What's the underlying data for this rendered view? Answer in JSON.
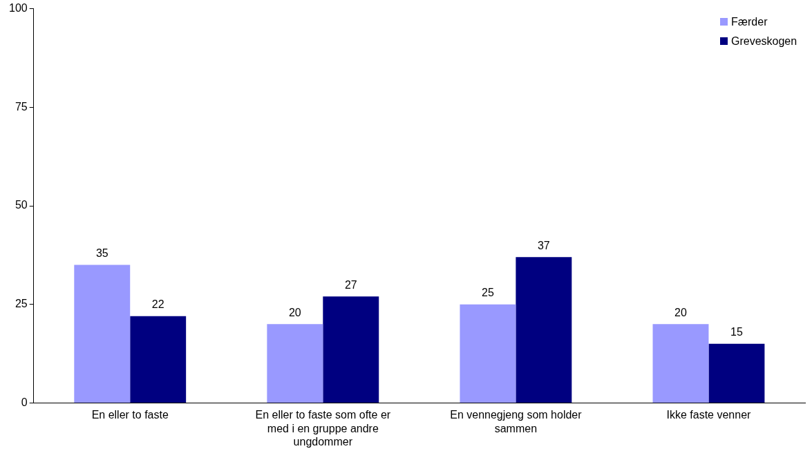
{
  "chart_data": {
    "type": "bar",
    "categories": [
      "En eller to faste",
      "En eller to faste som ofte er med i en gruppe andre ungdommer",
      "En vennegjeng som holder sammen",
      "Ikke faste venner"
    ],
    "series": [
      {
        "name": "Færder",
        "color": "#9999ff",
        "values": [
          35,
          20,
          25,
          20
        ]
      },
      {
        "name": "Greveskogen",
        "color": "#000080",
        "values": [
          22,
          27,
          37,
          15
        ]
      }
    ],
    "ylim": [
      0,
      100
    ],
    "yticks": [
      0,
      25,
      50,
      75,
      100
    ],
    "grid": false,
    "legend": "top right",
    "data_labels": true
  }
}
